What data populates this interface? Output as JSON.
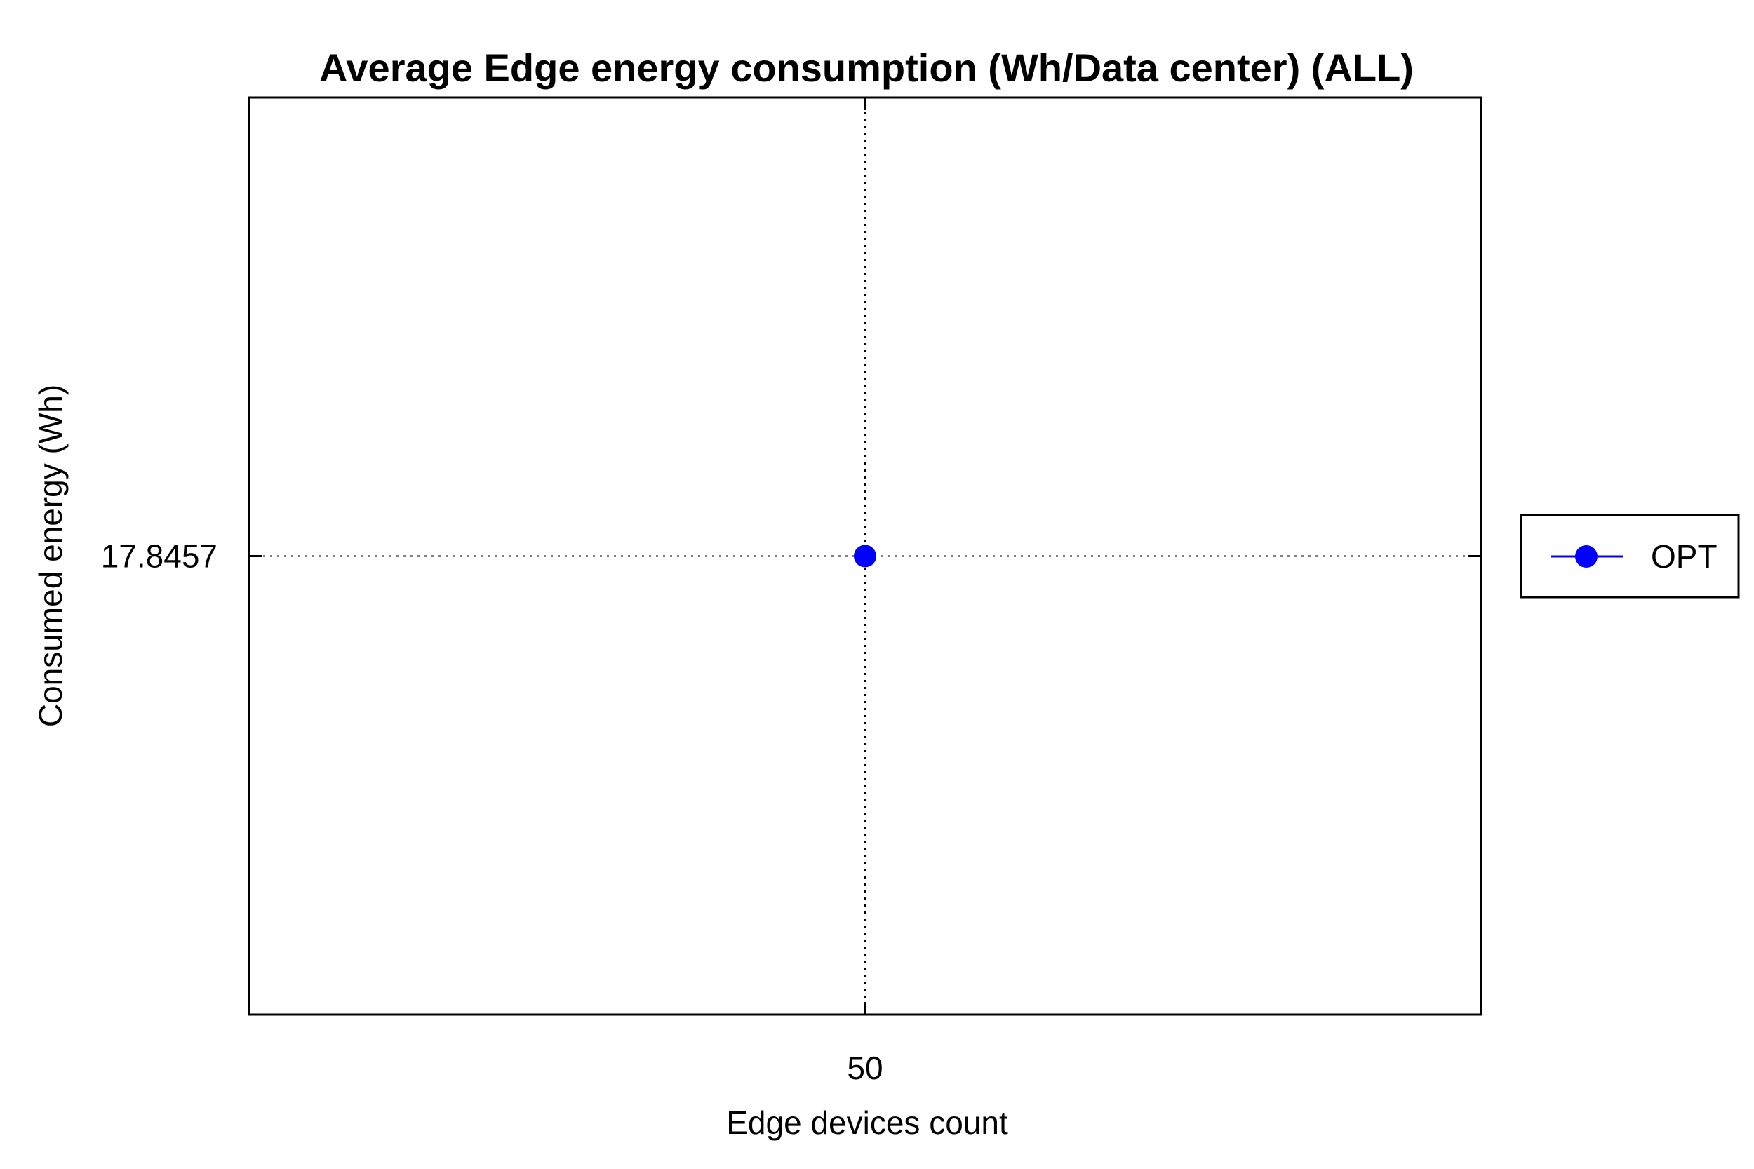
{
  "chart_data": {
    "type": "line",
    "title": "Average Edge energy consumption (Wh/Data center) (ALL)",
    "xlabel": "Edge devices count",
    "ylabel": "Consumed energy (Wh)",
    "x_ticks": [
      "50"
    ],
    "y_ticks": [
      "17.8457"
    ],
    "xlim": [
      49,
      51
    ],
    "ylim": [
      16.8457,
      18.8457
    ],
    "grid": true,
    "legend_position": "right",
    "series": [
      {
        "name": "OPT",
        "color": "#0000ff",
        "marker": "circle",
        "points": [
          {
            "x": 50,
            "y": 17.8457
          }
        ]
      }
    ]
  }
}
